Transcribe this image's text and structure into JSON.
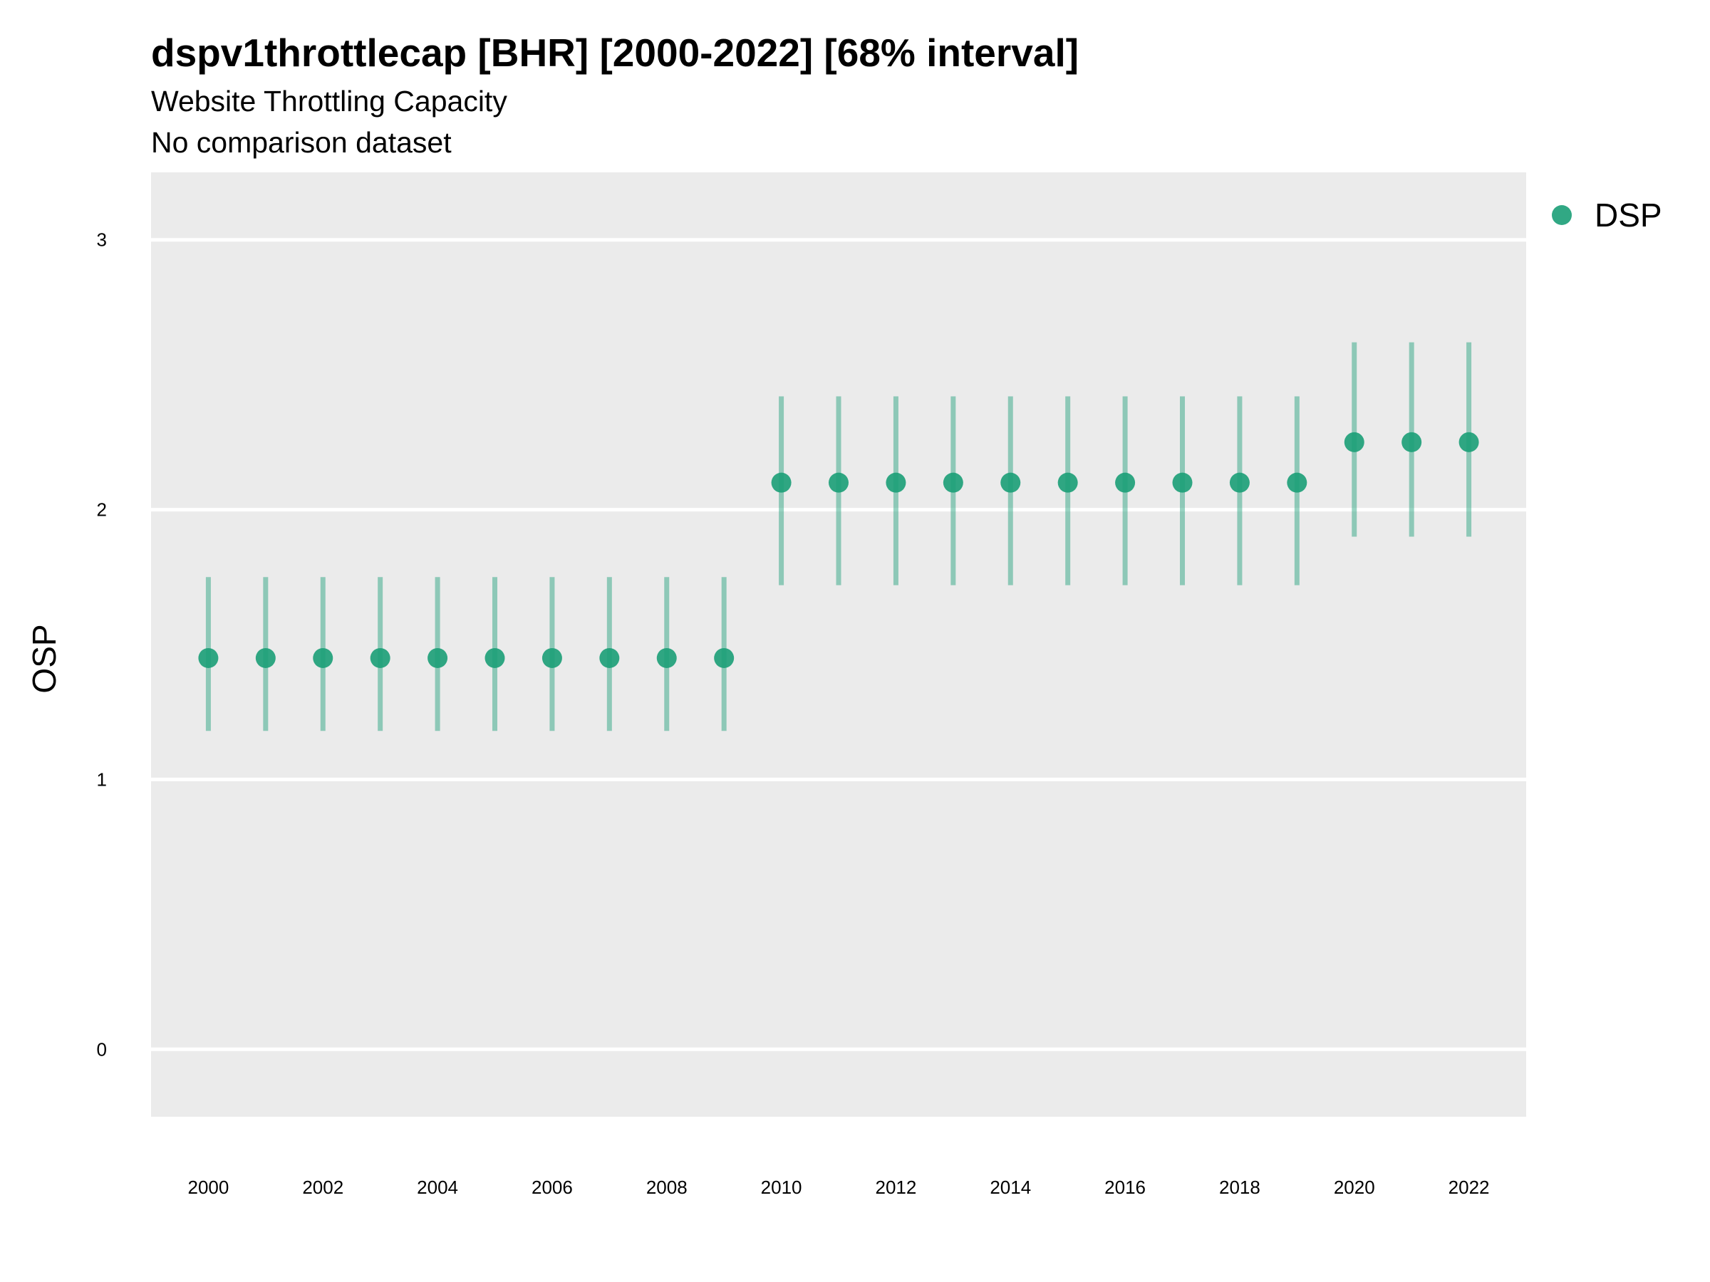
{
  "chart_data": {
    "type": "scatter",
    "title": "dspv1throttlecap [BHR] [2000-2022] [68% interval]",
    "subtitle": "Website Throttling Capacity",
    "subtitle2": "No comparison dataset",
    "xlabel": "",
    "ylabel": "OSP",
    "xlim": [
      1999,
      2023
    ],
    "ylim": [
      -0.25,
      3.25
    ],
    "x_ticks": [
      2000,
      2002,
      2004,
      2006,
      2008,
      2010,
      2012,
      2014,
      2016,
      2018,
      2020,
      2022
    ],
    "y_ticks": [
      0,
      1,
      2,
      3
    ],
    "grid": true,
    "legend_position": "top-right",
    "series": [
      {
        "name": "DSP",
        "color": "#1B9E77",
        "x": [
          2000,
          2001,
          2002,
          2003,
          2004,
          2005,
          2006,
          2007,
          2008,
          2009,
          2010,
          2011,
          2012,
          2013,
          2014,
          2015,
          2016,
          2017,
          2018,
          2019,
          2020,
          2021,
          2022
        ],
        "y": [
          1.45,
          1.45,
          1.45,
          1.45,
          1.45,
          1.45,
          1.45,
          1.45,
          1.45,
          1.45,
          2.1,
          2.1,
          2.1,
          2.1,
          2.1,
          2.1,
          2.1,
          2.1,
          2.1,
          2.1,
          2.25,
          2.25,
          2.25
        ],
        "lower": [
          1.18,
          1.18,
          1.18,
          1.18,
          1.18,
          1.18,
          1.18,
          1.18,
          1.18,
          1.18,
          1.72,
          1.72,
          1.72,
          1.72,
          1.72,
          1.72,
          1.72,
          1.72,
          1.72,
          1.72,
          1.9,
          1.9,
          1.9
        ],
        "upper": [
          1.75,
          1.75,
          1.75,
          1.75,
          1.75,
          1.75,
          1.75,
          1.75,
          1.75,
          1.75,
          2.42,
          2.42,
          2.42,
          2.42,
          2.42,
          2.42,
          2.42,
          2.42,
          2.42,
          2.42,
          2.62,
          2.62,
          2.62
        ]
      }
    ]
  }
}
